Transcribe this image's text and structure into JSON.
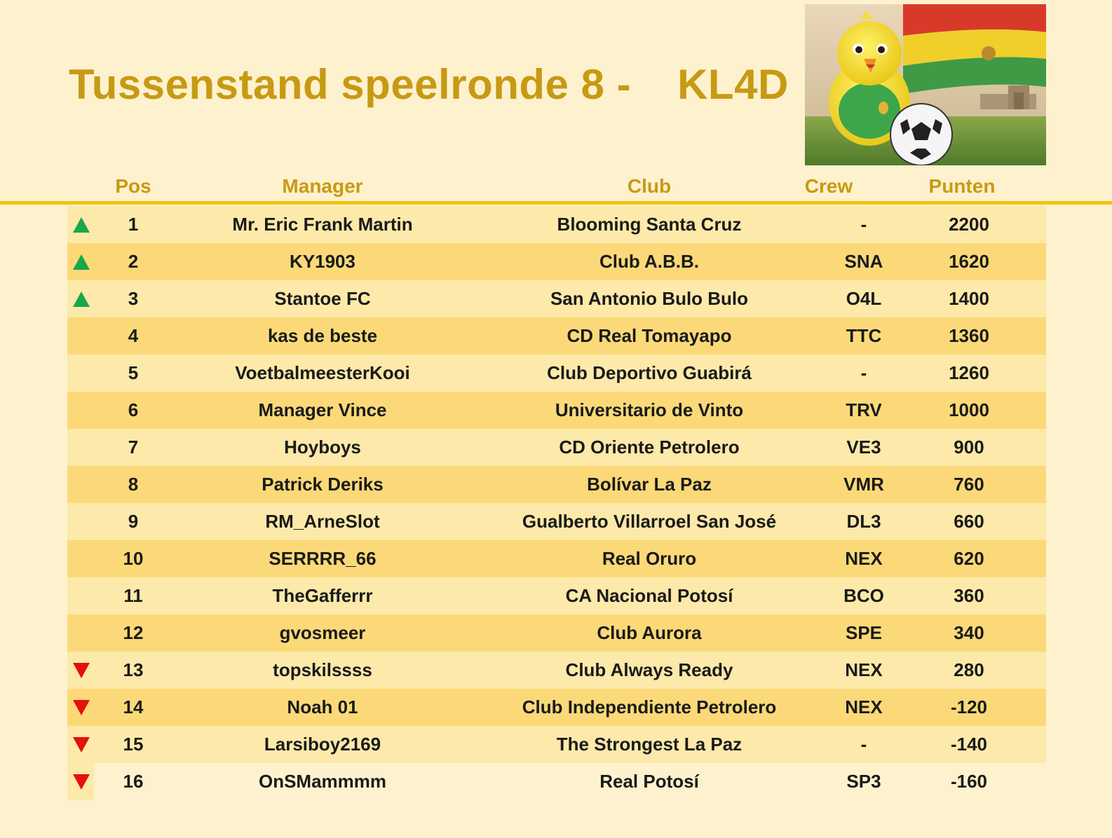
{
  "title": {
    "text": "Tussenstand speelronde 8 -",
    "code": "KL4D"
  },
  "colors": {
    "background": "#fef1cd",
    "accent": "#c79a14",
    "rule": "#f1c40f",
    "row_light": "#fde9a9",
    "row_dark": "#fcd978",
    "up": "#1aa64b",
    "down": "#e3120b"
  },
  "headers": {
    "pos": "Pos",
    "manager": "Manager",
    "club": "Club",
    "crew": "Crew",
    "punten": "Punten"
  },
  "rows": [
    {
      "trend": "up",
      "pos": "1",
      "manager": "Mr. Eric Frank Martin",
      "club": "Blooming Santa Cruz",
      "crew": "-",
      "punten": "2200"
    },
    {
      "trend": "up",
      "pos": "2",
      "manager": "KY1903",
      "club": "Club A.B.B.",
      "crew": "SNA",
      "punten": "1620"
    },
    {
      "trend": "up",
      "pos": "3",
      "manager": "Stantoe FC",
      "club": "San Antonio Bulo Bulo",
      "crew": "O4L",
      "punten": "1400"
    },
    {
      "trend": "",
      "pos": "4",
      "manager": "kas de beste",
      "club": "CD Real Tomayapo",
      "crew": "TTC",
      "punten": "1360"
    },
    {
      "trend": "",
      "pos": "5",
      "manager": "VoetbalmeesterKooi",
      "club": "Club Deportivo Guabirá",
      "crew": "-",
      "punten": "1260"
    },
    {
      "trend": "",
      "pos": "6",
      "manager": "Manager Vince",
      "club": "Universitario de Vinto",
      "crew": "TRV",
      "punten": "1000"
    },
    {
      "trend": "",
      "pos": "7",
      "manager": "Hoyboys",
      "club": "CD Oriente Petrolero",
      "crew": "VE3",
      "punten": "900"
    },
    {
      "trend": "",
      "pos": "8",
      "manager": "Patrick Deriks",
      "club": "Bolívar La Paz",
      "crew": "VMR",
      "punten": "760"
    },
    {
      "trend": "",
      "pos": "9",
      "manager": "RM_ArneSlot",
      "club": "Gualberto Villarroel San José",
      "crew": "DL3",
      "punten": "660"
    },
    {
      "trend": "",
      "pos": "10",
      "manager": "SERRRR_66",
      "club": "Real Oruro",
      "crew": "NEX",
      "punten": "620"
    },
    {
      "trend": "",
      "pos": "11",
      "manager": "TheGafferrr",
      "club": "CA Nacional Potosí",
      "crew": "BCO",
      "punten": "360"
    },
    {
      "trend": "",
      "pos": "12",
      "manager": "gvosmeer",
      "club": "Club Aurora",
      "crew": "SPE",
      "punten": "340"
    },
    {
      "trend": "down",
      "pos": "13",
      "manager": "topskilssss",
      "club": "Club Always Ready",
      "crew": "NEX",
      "punten": "280"
    },
    {
      "trend": "down",
      "pos": "14",
      "manager": "Noah 01",
      "club": "Club Independiente Petrolero",
      "crew": "NEX",
      "punten": "-120"
    },
    {
      "trend": "down",
      "pos": "15",
      "manager": "Larsiboy2169",
      "club": "The Strongest La Paz",
      "crew": "-",
      "punten": "-140"
    },
    {
      "trend": "down",
      "pos": "16",
      "manager": "OnSMammmm",
      "club": "Real Potosí",
      "crew": "SP3",
      "punten": "-160"
    }
  ]
}
